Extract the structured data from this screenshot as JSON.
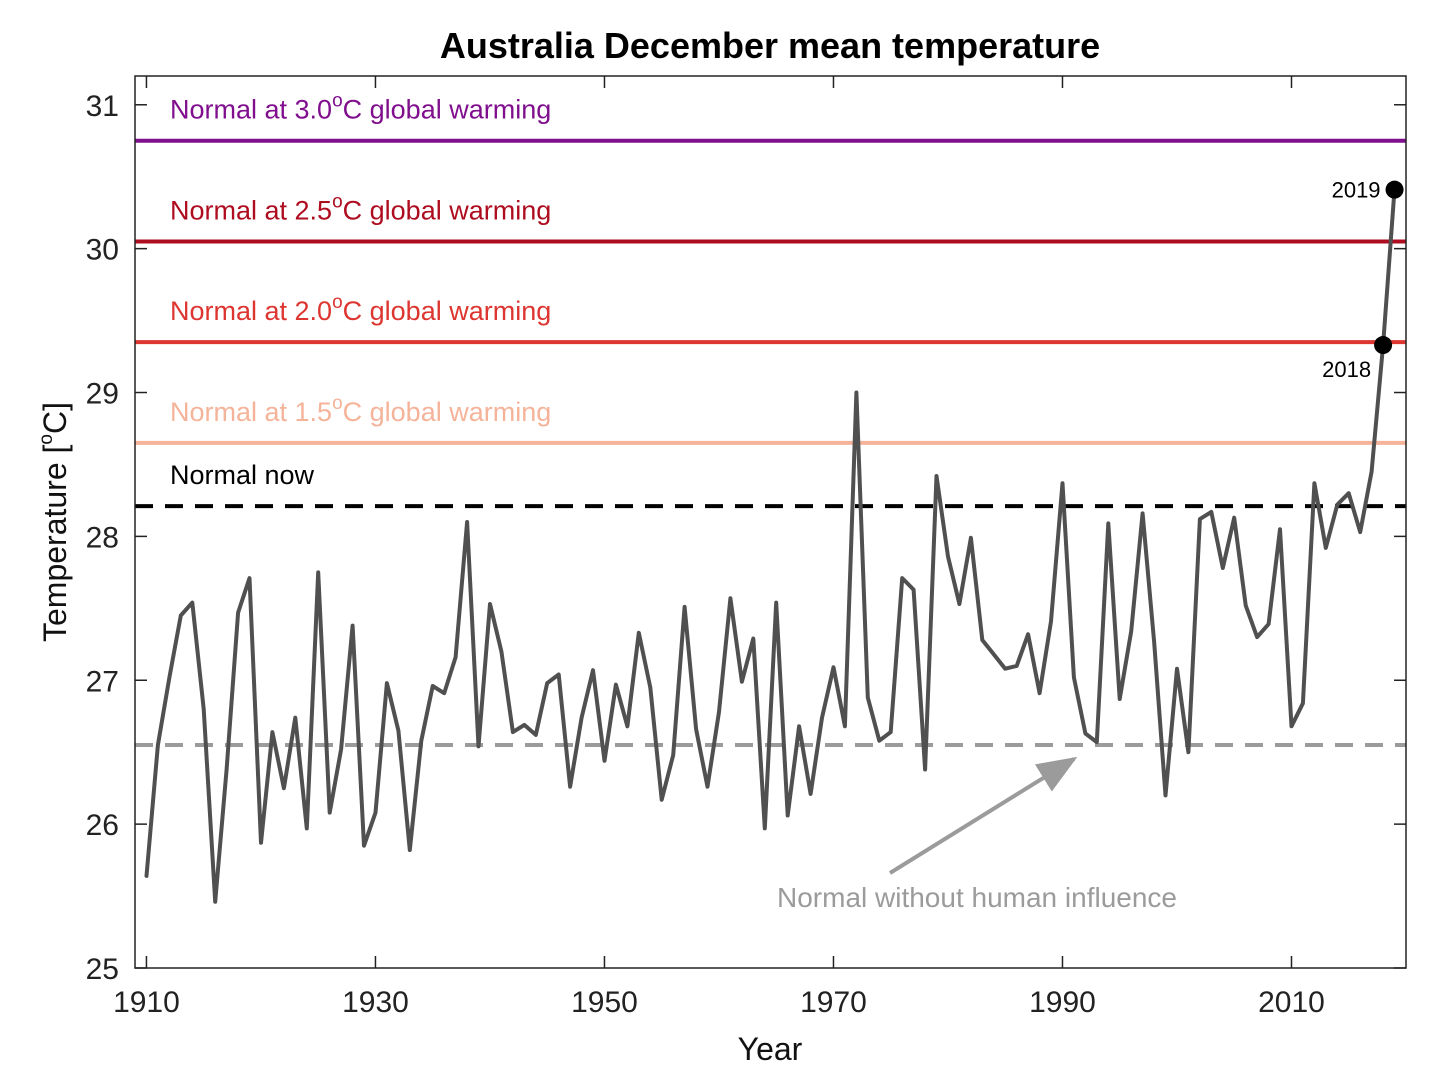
{
  "chart_data": {
    "type": "line",
    "title": "Australia December mean temperature",
    "xlabel": "Year",
    "ylabel": {
      "pre": "Temperature [",
      "sup": "o",
      "post": "C]"
    },
    "xlim": [
      1909,
      2020
    ],
    "ylim": [
      25,
      31.2
    ],
    "xticks": [
      1910,
      1930,
      1950,
      1970,
      1990,
      2010
    ],
    "yticks": [
      25,
      26,
      27,
      28,
      29,
      30,
      31
    ],
    "series": [
      {
        "color": "#505050",
        "x": [
          1910,
          1911,
          1912,
          1913,
          1914,
          1915,
          1916,
          1917,
          1918,
          1919,
          1920,
          1921,
          1922,
          1923,
          1924,
          1925,
          1926,
          1927,
          1928,
          1929,
          1930,
          1931,
          1932,
          1933,
          1934,
          1935,
          1936,
          1937,
          1938,
          1939,
          1940,
          1941,
          1942,
          1943,
          1944,
          1945,
          1946,
          1947,
          1948,
          1949,
          1950,
          1951,
          1952,
          1953,
          1954,
          1955,
          1956,
          1957,
          1958,
          1959,
          1960,
          1961,
          1962,
          1963,
          1964,
          1965,
          1966,
          1967,
          1968,
          1969,
          1970,
          1971,
          1972,
          1973,
          1974,
          1975,
          1976,
          1977,
          1978,
          1979,
          1980,
          1981,
          1982,
          1983,
          1984,
          1985,
          1986,
          1987,
          1988,
          1989,
          1990,
          1991,
          1992,
          1993,
          1994,
          1995,
          1996,
          1997,
          1998,
          1999,
          2000,
          2001,
          2002,
          2003,
          2004,
          2005,
          2006,
          2007,
          2008,
          2009,
          2010,
          2011,
          2012,
          2013,
          2014,
          2015,
          2016,
          2017,
          2018,
          2019
        ],
        "y": [
          25.64,
          26.55,
          27.02,
          27.45,
          27.54,
          26.8,
          25.46,
          26.38,
          27.47,
          27.71,
          25.87,
          26.64,
          26.25,
          26.74,
          25.97,
          27.75,
          26.08,
          26.52,
          27.38,
          25.85,
          26.08,
          26.98,
          26.65,
          25.82,
          26.58,
          26.96,
          26.91,
          27.16,
          28.1,
          26.54,
          27.53,
          27.2,
          26.64,
          26.69,
          26.62,
          26.98,
          27.04,
          26.26,
          26.74,
          27.07,
          26.44,
          26.97,
          26.68,
          27.33,
          26.95,
          26.17,
          26.48,
          27.51,
          26.66,
          26.26,
          26.78,
          27.57,
          26.99,
          27.29,
          25.97,
          27.54,
          26.06,
          26.68,
          26.21,
          26.74,
          27.09,
          26.68,
          29.0,
          26.88,
          26.58,
          26.64,
          27.71,
          27.63,
          26.38,
          28.42,
          27.86,
          27.53,
          27.99,
          27.28,
          27.18,
          27.08,
          27.1,
          27.32,
          26.91,
          27.41,
          28.37,
          27.02,
          26.63,
          26.57,
          28.09,
          26.87,
          27.34,
          28.16,
          27.27,
          26.2,
          27.08,
          26.5,
          28.12,
          28.17,
          27.78,
          28.13,
          27.52,
          27.3,
          27.39,
          28.05,
          26.68,
          26.84,
          28.37,
          27.92,
          28.22,
          28.3,
          28.03,
          28.45,
          29.33,
          30.41
        ]
      }
    ],
    "highlights": [
      {
        "x": 2018,
        "y": 29.33,
        "label": "2018"
      },
      {
        "x": 2019,
        "y": 30.41,
        "label": "2019"
      }
    ],
    "reference_lines": [
      {
        "y": 30.75,
        "color": "#800f8e",
        "style": "solid",
        "label_pre": "Normal at 3.0",
        "label_sup": "o",
        "label_post": "C global warming"
      },
      {
        "y": 30.05,
        "color": "#ae0d20",
        "style": "solid",
        "label_pre": "Normal at 2.5",
        "label_sup": "o",
        "label_post": "C global warming"
      },
      {
        "y": 29.35,
        "color": "#dd3530",
        "style": "solid",
        "label_pre": "Normal at 2.0",
        "label_sup": "o",
        "label_post": "C global warming"
      },
      {
        "y": 28.65,
        "color": "#f5b39a",
        "style": "solid",
        "label_pre": "Normal at 1.5",
        "label_sup": "o",
        "label_post": "C global warming"
      },
      {
        "y": 28.21,
        "color": "#000000",
        "style": "dashed",
        "label_pre": "Normal now",
        "label_sup": "",
        "label_post": ""
      },
      {
        "y": 26.55,
        "color": "#9b9b9b",
        "style": "dashed",
        "label_pre": "",
        "label_sup": "",
        "label_post": ""
      }
    ],
    "annotation": {
      "text": "Normal without human influence",
      "color": "#9b9b9b",
      "arrow_to": {
        "x": 1991,
        "y": 26.55
      }
    }
  }
}
